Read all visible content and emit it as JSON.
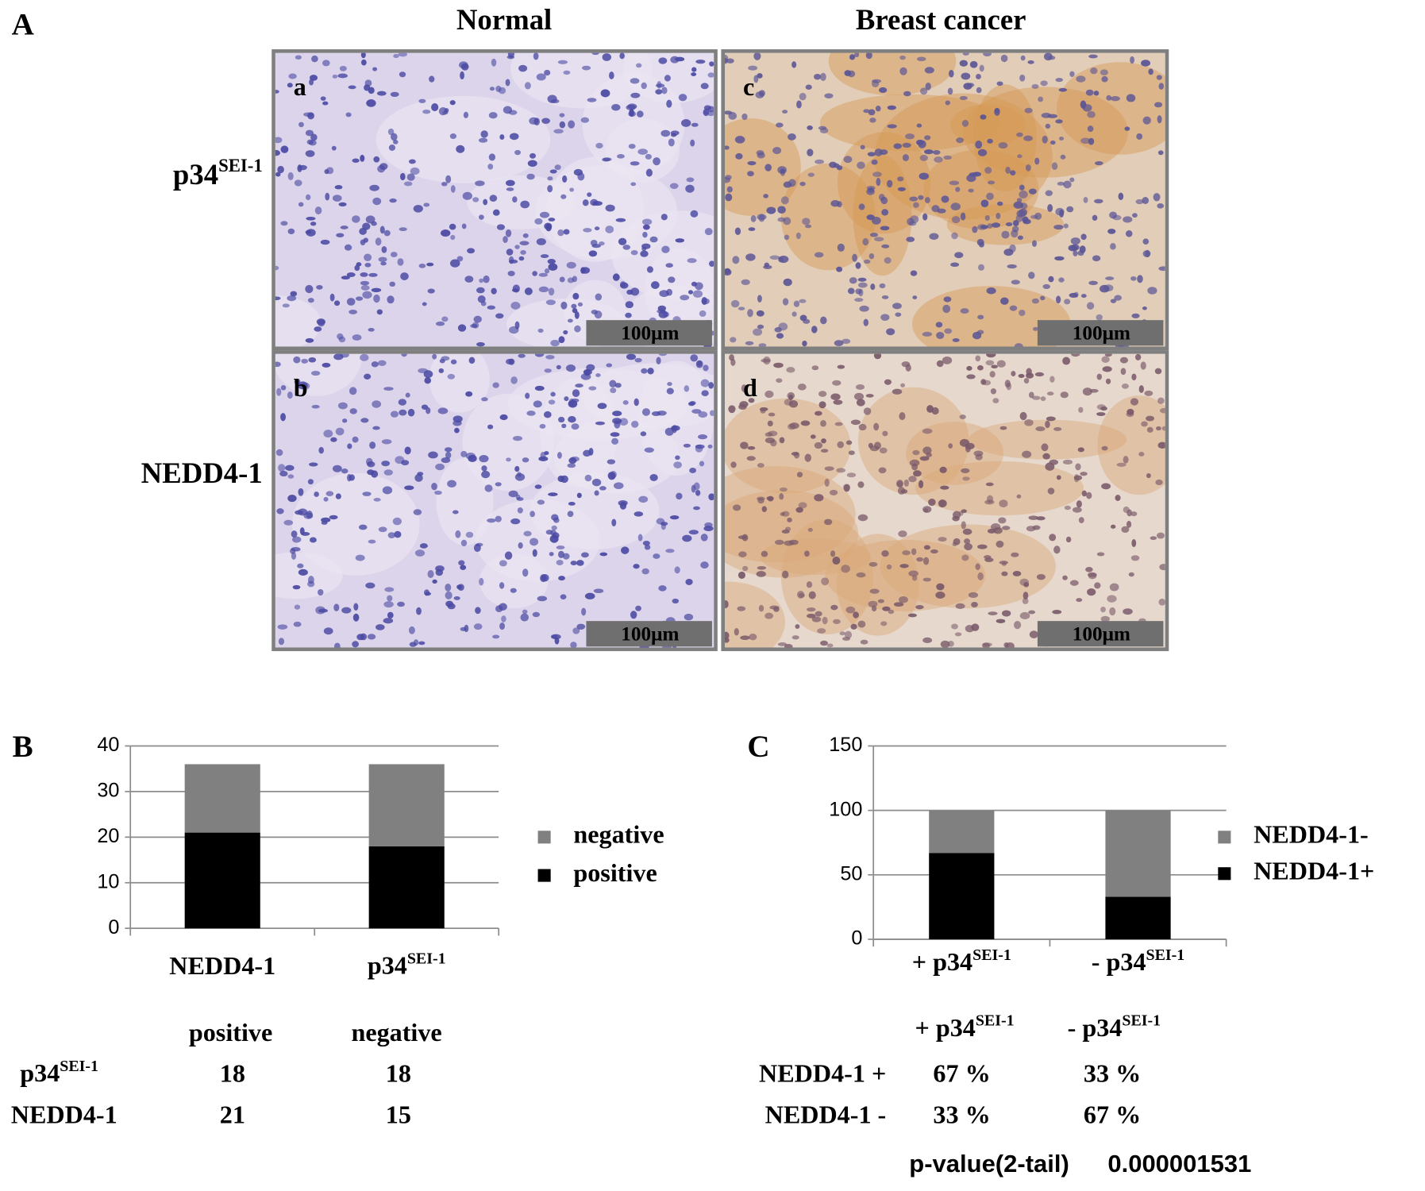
{
  "panel_a": {
    "label": "A",
    "columns": [
      "Normal",
      "Breast cancer"
    ],
    "rows": [
      {
        "text": "p34",
        "sup": "SEI-1"
      },
      "NEDD4-1"
    ],
    "panels": [
      {
        "letter": "a",
        "scale": "100μm"
      },
      {
        "letter": "b",
        "scale": "100μm"
      },
      {
        "letter": "c",
        "scale": "100μm"
      },
      {
        "letter": "d",
        "scale": "100μm"
      }
    ]
  },
  "chart_data": [
    {
      "type": "stacked_bar",
      "panel_label": "B",
      "categories": [
        "NEDD4-1",
        {
          "text": "p34",
          "sup": "SEI-1"
        }
      ],
      "series": [
        {
          "name": "positive",
          "color": "#000000",
          "values": [
            21,
            18
          ]
        },
        {
          "name": "negative",
          "color": "#808080",
          "values": [
            15,
            18
          ]
        }
      ],
      "ylim": [
        0,
        40
      ],
      "yticks": [
        0,
        10,
        20,
        30,
        40
      ],
      "grid": true,
      "legend": "right"
    },
    {
      "type": "stacked_bar",
      "panel_label": "C",
      "categories": [
        {
          "text": "+ p34",
          "sup": "SEI-1"
        },
        {
          "text": "- p34",
          "sup": "SEI-1"
        }
      ],
      "series": [
        {
          "name": "NEDD4-1+",
          "color": "#000000",
          "values": [
            67,
            33
          ]
        },
        {
          "name": "NEDD4-1-",
          "color": "#808080",
          "values": [
            33,
            67
          ]
        }
      ],
      "ylim": [
        0,
        150
      ],
      "yticks": [
        0,
        50,
        100,
        150
      ],
      "grid": true,
      "legend": "right"
    }
  ],
  "table_b": {
    "columns": [
      "positive",
      "negative"
    ],
    "rows": [
      {
        "label": {
          "text": "p34",
          "sup": "SEI-1"
        },
        "cells": [
          "18",
          "18"
        ]
      },
      {
        "label": "NEDD4-1",
        "cells": [
          "21",
          "15"
        ]
      }
    ]
  },
  "table_c": {
    "columns": [
      {
        "text": "+ p34",
        "sup": "SEI-1"
      },
      {
        "text": "- p34",
        "sup": "SEI-1"
      }
    ],
    "rows": [
      {
        "label": "NEDD4-1 +",
        "cells": [
          "67 %",
          "33 %"
        ]
      },
      {
        "label": "NEDD4-1 -",
        "cells": [
          "33 %",
          "67 %"
        ]
      }
    ],
    "p_value": {
      "label": "p-value(2-tail)",
      "value": "0.000001531"
    }
  }
}
